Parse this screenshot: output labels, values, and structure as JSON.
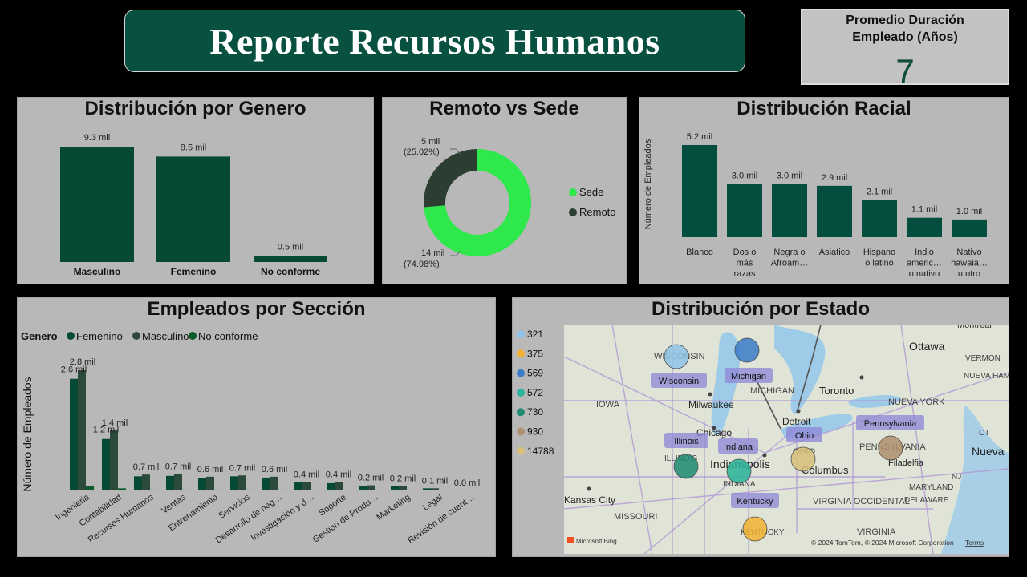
{
  "header": {
    "title": "Reporte Recursos Humanos"
  },
  "kpi": {
    "label_line1": "Promedio Duración",
    "label_line2": "Empleado (Años)",
    "value": "7"
  },
  "colors": {
    "dark_green": "#064a35",
    "teal": "#034e3f",
    "bright_green": "#2ee84c",
    "remote_dark": "#2b3e31",
    "card_bg": "#b8b8b8"
  },
  "gender_chart": {
    "title": "Distribución por Genero",
    "chart_data": {
      "type": "bar",
      "categories": [
        "Masculino",
        "Femenino",
        "No conforme"
      ],
      "values": [
        9.3,
        8.5,
        0.5
      ],
      "labels": [
        "9.3 mil",
        "8.5 mil",
        "0.5 mil"
      ],
      "unit": "mil"
    }
  },
  "remote_chart": {
    "title": "Remoto vs Sede",
    "chart_data": {
      "type": "pie",
      "categories": [
        "Sede",
        "Remoto"
      ],
      "values": [
        14,
        5
      ],
      "percentages": [
        "(74.98%)",
        "(25.02%)"
      ],
      "labels": [
        "14 mil",
        "5 mil"
      ],
      "legend": [
        "Sede",
        "Remoto"
      ],
      "colors": [
        "#2ee84c",
        "#2b3e31"
      ]
    }
  },
  "race_chart": {
    "title": "Distribución Racial",
    "ylabel": "Número de Empleados",
    "chart_data": {
      "type": "bar",
      "categories": [
        [
          "Blanco"
        ],
        [
          "Dos o",
          "más",
          "razas"
        ],
        [
          "Negra o",
          "Afroam…"
        ],
        [
          "Asiatico"
        ],
        [
          "Hispano",
          "o latino"
        ],
        [
          "Indio",
          "americ…",
          "o nativo"
        ],
        [
          "Nativo",
          "hawaia…",
          "u otro"
        ]
      ],
      "values": [
        5.2,
        3.0,
        3.0,
        2.9,
        2.1,
        1.1,
        1.0
      ],
      "labels": [
        "5.2 mil",
        "3.0 mil",
        "3.0 mil",
        "2.9 mil",
        "2.1 mil",
        "1.1 mil",
        "1.0 mil"
      ]
    }
  },
  "section_chart": {
    "title": "Empleados por Sección",
    "ylabel": "Número de Empleados",
    "legend_title": "Genero",
    "chart_data": {
      "type": "bar",
      "categories": [
        "Ingenieria",
        "Contabilidad",
        "Recursos Humanos",
        "Ventas",
        "Entrenamiento",
        "Servicios",
        "Desarrollo de neg…",
        "Investigación y d…",
        "Soporte",
        "Gestión de Produ…",
        "Marketing",
        "Legal",
        "Revisión de cuent…"
      ],
      "series": [
        {
          "name": "Femenino",
          "color": "#064a35",
          "values": [
            2.6,
            1.2,
            0.33,
            0.34,
            0.28,
            0.33,
            0.3,
            0.2,
            0.17,
            0.1,
            0.1,
            0.05,
            0.0
          ]
        },
        {
          "name": "Masculino",
          "color": "#2b4a3a",
          "values": [
            2.8,
            1.4,
            0.37,
            0.38,
            0.32,
            0.35,
            0.32,
            0.2,
            0.2,
            0.12,
            0.1,
            0.05,
            0.0
          ]
        },
        {
          "name": "No conforme",
          "color": "#0b5a2c",
          "values": [
            0.1,
            0.05,
            0.02,
            0.02,
            0.02,
            0.02,
            0.02,
            0.01,
            0.01,
            0.01,
            0.01,
            0.0,
            0.0
          ]
        }
      ],
      "totals": [
        "",
        "",
        "0.7 mil",
        "0.7 mil",
        "0.6 mil",
        "0.7 mil",
        "0.6 mil",
        "0.4 mil",
        "0.4 mil",
        "0.2 mil",
        "0.2 mil",
        "0.1 mil",
        "0.0 mil"
      ],
      "top_labels": {
        "femenino_ing": "2.6 mil",
        "masculino_ing": "2.8 mil",
        "femenino_cont": "1.2 mil",
        "masculino_cont": "1.4 mil"
      }
    }
  },
  "map_panel": {
    "title": "Distribución por Estado",
    "legend": [
      {
        "value": "321",
        "color": "#8fc4e8"
      },
      {
        "value": "375",
        "color": "#f2b233"
      },
      {
        "value": "569",
        "color": "#3a7bc8"
      },
      {
        "value": "572",
        "color": "#2bb59a"
      },
      {
        "value": "730",
        "color": "#1e8a72"
      },
      {
        "value": "930",
        "color": "#b09070"
      },
      {
        "value": "14788",
        "color": "#d9c07a"
      }
    ],
    "state_labels": [
      "Wisconsin",
      "Michigan",
      "Illinois",
      "Indiana",
      "Ohio",
      "Kentucky",
      "Pennsylvania"
    ],
    "place_labels": [
      "Ottawa",
      "Toronto",
      "Milwaukee",
      "Chicago",
      "Detroit",
      "Indianapolis",
      "Columbus",
      "Kansas City",
      "Filadelfia",
      "Nueva",
      "Montreal",
      "VERMON",
      "NUEVA HAM",
      "NUEVA YORK",
      "IOWA",
      "MICHIGAN",
      "WISCONSIN",
      "ILLINOIS",
      "INDIANA",
      "OHIO",
      "PENNSYLVANIA",
      "MISSOURI",
      "KENTUCKY",
      "VIRGINIA",
      "VIRGINIA OCCIDENTAL",
      "DELAWARE",
      "MARYLAND",
      "NJ",
      "CT"
    ],
    "footer_brand": "Microsoft Bing",
    "copyright": "© 2024 TomTom, © 2024 Microsoft Corporation",
    "terms": "Terms"
  }
}
